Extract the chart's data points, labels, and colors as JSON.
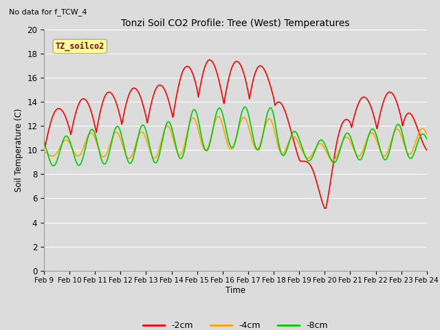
{
  "title": "Tonzi Soil CO2 Profile: Tree (West) Temperatures",
  "subtitle": "No data for f_TCW_4",
  "ylabel": "Soil Temperature (C)",
  "xlabel": "Time",
  "legend_label": "TZ_soilco2",
  "ylim": [
    0,
    20
  ],
  "series": {
    "neg2cm": {
      "color": "#FF0000",
      "label": "-2cm",
      "linewidth": 1.2
    },
    "neg4cm": {
      "color": "#FFA500",
      "label": "-4cm",
      "linewidth": 1.2
    },
    "neg8cm": {
      "color": "#00CC00",
      "label": "-8cm",
      "linewidth": 1.2
    }
  },
  "background_color": "#DCDCDC",
  "plot_bg_color": "#DCDCDC",
  "xtick_labels": [
    "Feb 9",
    "Feb 10",
    "Feb 11",
    "Feb 12",
    "Feb 13",
    "Feb 14",
    "Feb 15",
    "Feb 16",
    "Feb 17",
    "Feb 18",
    "Feb 19",
    "Feb 20",
    "Feb 21",
    "Feb 22",
    "Feb 23",
    "Feb 24"
  ],
  "ytick_labels": [
    "0",
    "2",
    "4",
    "6",
    "8",
    "10",
    "12",
    "14",
    "16",
    "18",
    "20"
  ],
  "ytick_values": [
    0,
    2,
    4,
    6,
    8,
    10,
    12,
    14,
    16,
    18,
    20
  ],
  "figsize": [
    6.4,
    4.8
  ],
  "dpi": 100
}
